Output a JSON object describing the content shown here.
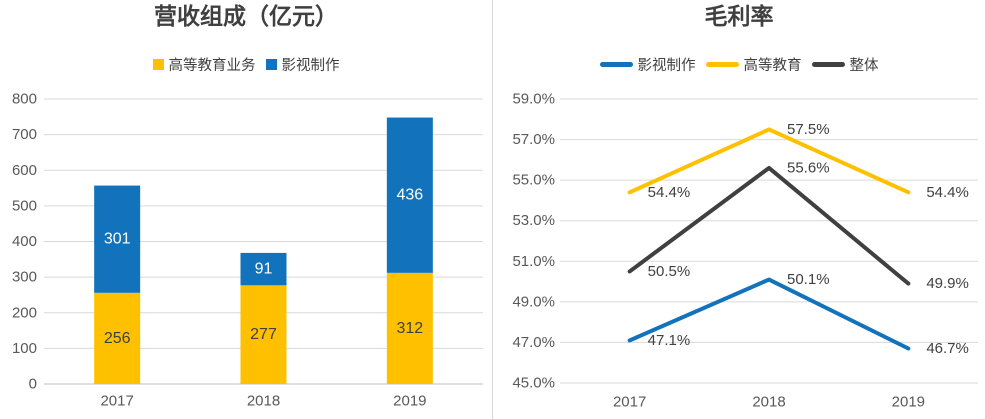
{
  "page": {
    "background": "#FFFFFF"
  },
  "colors": {
    "blue": "#1272BC",
    "gold": "#FFC000",
    "dark_gray": "#404040",
    "axis_text": "#595959",
    "grid_line": "#D9D9D9",
    "axis_line": "#BFBFBF",
    "bar_label_on_gold": "#404040",
    "bar_label_on_blue": "#FFFFFF"
  },
  "chart_data": [
    {
      "type": "bar",
      "stacked": true,
      "title": "营收组成（亿元）",
      "xlabel": "",
      "ylabel": "",
      "categories": [
        "2017",
        "2018",
        "2019"
      ],
      "series": [
        {
          "name": "高等教育业务",
          "color": "#FFC000",
          "label_color": "#404040",
          "values": [
            256,
            277,
            312
          ],
          "point_labels": [
            "256",
            "277",
            "312"
          ]
        },
        {
          "name": "影视制作",
          "color": "#1272BC",
          "label_color": "#FFFFFF",
          "values": [
            301,
            91,
            436
          ],
          "point_labels": [
            "301",
            "91",
            "436"
          ]
        }
      ],
      "ylim": [
        0,
        800
      ],
      "yticks": [
        0,
        100,
        200,
        300,
        400,
        500,
        600,
        700,
        800
      ],
      "ytick_labels": [
        "0",
        "100",
        "200",
        "300",
        "400",
        "500",
        "600",
        "700",
        "800"
      ],
      "grid": true,
      "legend_position": "top"
    },
    {
      "type": "line",
      "title": "毛利率",
      "xlabel": "",
      "ylabel": "",
      "categories": [
        "2017",
        "2018",
        "2019"
      ],
      "series": [
        {
          "name": "影视制作",
          "color": "#1272BC",
          "values": [
            47.1,
            50.1,
            46.7
          ],
          "point_labels": [
            "47.1%",
            "50.1%",
            "46.7%"
          ]
        },
        {
          "name": "高等教育",
          "color": "#FFC000",
          "values": [
            54.4,
            57.5,
            54.4
          ],
          "point_labels": [
            "54.4%",
            "57.5%",
            "54.4%"
          ]
        },
        {
          "name": "整体",
          "color": "#404040",
          "values": [
            50.5,
            55.6,
            49.9
          ],
          "point_labels": [
            "50.5%",
            "55.6%",
            "49.9%"
          ]
        }
      ],
      "ylim": [
        45,
        59
      ],
      "yticks": [
        45,
        47,
        49,
        51,
        53,
        55,
        57,
        59
      ],
      "ytick_labels": [
        "45.0%",
        "47.0%",
        "49.0%",
        "51.0%",
        "53.0%",
        "55.0%",
        "57.0%",
        "59.0%"
      ],
      "grid": true,
      "legend_position": "top"
    }
  ]
}
